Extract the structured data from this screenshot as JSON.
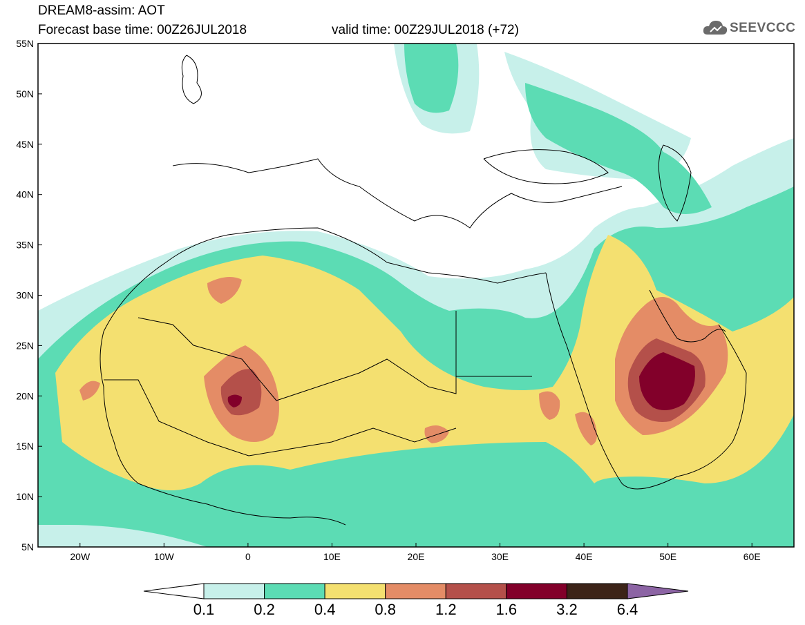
{
  "header": {
    "line1": "DREAM8-assim: AOT",
    "line2": "Forecast base time: 00Z26JUL2018",
    "valid": "valid time: 00Z29JUL2018 (+72)"
  },
  "logo": {
    "text": "SEEVCCC",
    "icon": "cloud-icon"
  },
  "map": {
    "lon_range": [
      -25,
      65
    ],
    "lat_range": [
      5,
      55
    ],
    "lat_labels": [
      "55N",
      "50N",
      "45N",
      "40N",
      "35N",
      "30N",
      "25N",
      "20N",
      "15N",
      "10N",
      "5N"
    ],
    "lon_labels": [
      "20W",
      "10W",
      "0",
      "10E",
      "20E",
      "30E",
      "40E",
      "50E",
      "60E"
    ],
    "field": "AOT (aerosol optical thickness)"
  },
  "colorbar": {
    "labels": [
      "0.1",
      "0.2",
      "0.4",
      "0.8",
      "1.2",
      "1.6",
      "3.2",
      "6.4"
    ],
    "colors": [
      "#c7f0ea",
      "#5cdcb4",
      "#f4e070",
      "#e48c66",
      "#b4504a",
      "#82002a",
      "#3c2418",
      "#8c64a4"
    ]
  }
}
